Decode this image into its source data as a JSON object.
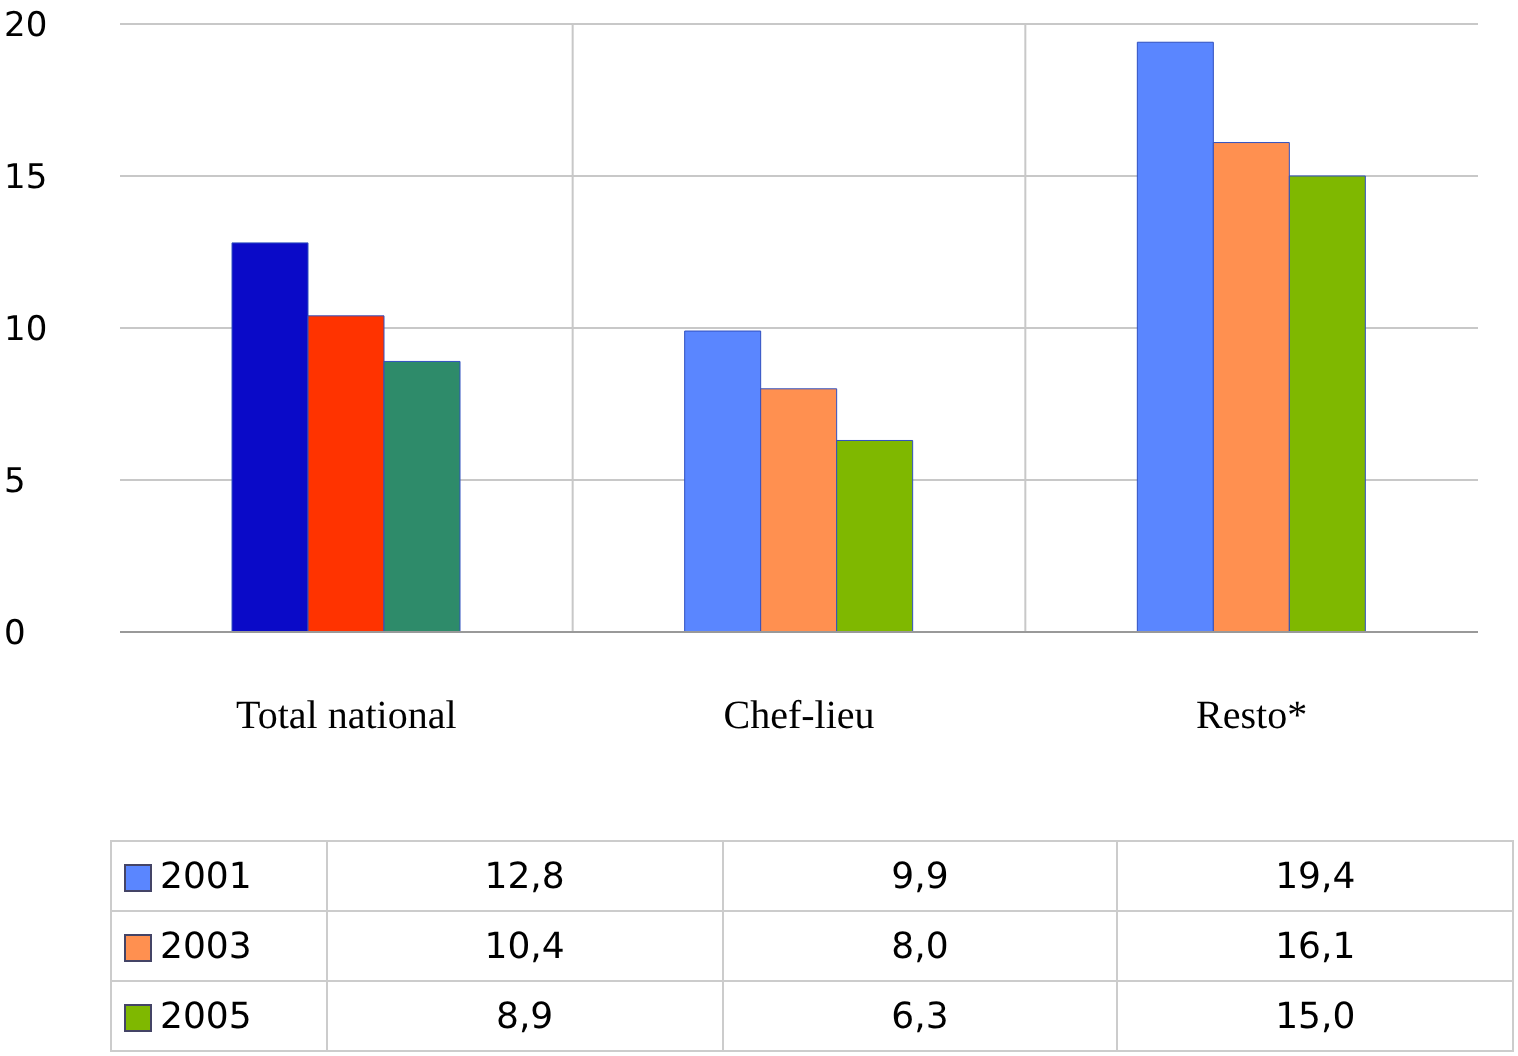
{
  "chart_data": {
    "type": "bar",
    "categories": [
      "Total   national",
      "Chef-lieu",
      "Resto*"
    ],
    "series": [
      {
        "name": "2001",
        "color": "#5a86ff",
        "colors": [
          "#0a0ac8",
          "#5a86ff",
          "#5a86ff"
        ],
        "values": [
          12.8,
          9.9,
          19.4
        ],
        "value_labels": [
          "12,8",
          "9,9",
          "19,4"
        ]
      },
      {
        "name": "2003",
        "color": "#ff9050",
        "colors": [
          "#ff3300",
          "#ff9050",
          "#ff9050"
        ],
        "values": [
          10.4,
          8.0,
          16.1
        ],
        "value_labels": [
          "10,4",
          "8,0",
          "16,1"
        ]
      },
      {
        "name": "2005",
        "color": "#7fb800",
        "colors": [
          "#2e8b6a",
          "#7fb800",
          "#7fb800"
        ],
        "values": [
          8.9,
          6.3,
          15.0
        ],
        "value_labels": [
          "8,9",
          "6,3",
          "15,0"
        ]
      }
    ],
    "ylim": [
      0,
      20
    ],
    "yticks": [
      0,
      5,
      10,
      15,
      20
    ],
    "grid": true,
    "legend": "bottom"
  }
}
